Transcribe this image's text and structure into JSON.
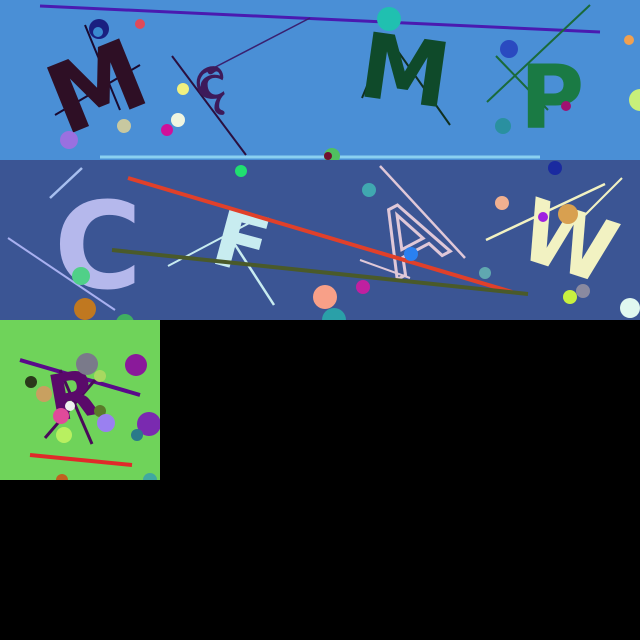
{
  "colors": {
    "background": "#000000",
    "top_band": "#4a8fd6",
    "middle_band": "#3b5594",
    "small_tile": "#6fd35a"
  },
  "top_band": {
    "glyphs": [
      {
        "text": "M",
        "color": "#2e0f25"
      },
      {
        "text": "ඳ",
        "color": "#3d1a5a"
      },
      {
        "text": "M",
        "color": "#0f4a2a"
      },
      {
        "text": "P",
        "color": "#1a7a44"
      }
    ]
  },
  "middle_band": {
    "glyphs": [
      {
        "text": "C",
        "color": "#b5b8ec"
      },
      {
        "text": "F",
        "color": "#c8ecf0"
      },
      {
        "text": "A",
        "color": "#e0c8d8"
      },
      {
        "text": "W",
        "color": "#f2f2c2"
      }
    ]
  },
  "small_tile": {
    "glyphs": [
      {
        "text": "R",
        "color": "#5a0a6a"
      }
    ]
  }
}
